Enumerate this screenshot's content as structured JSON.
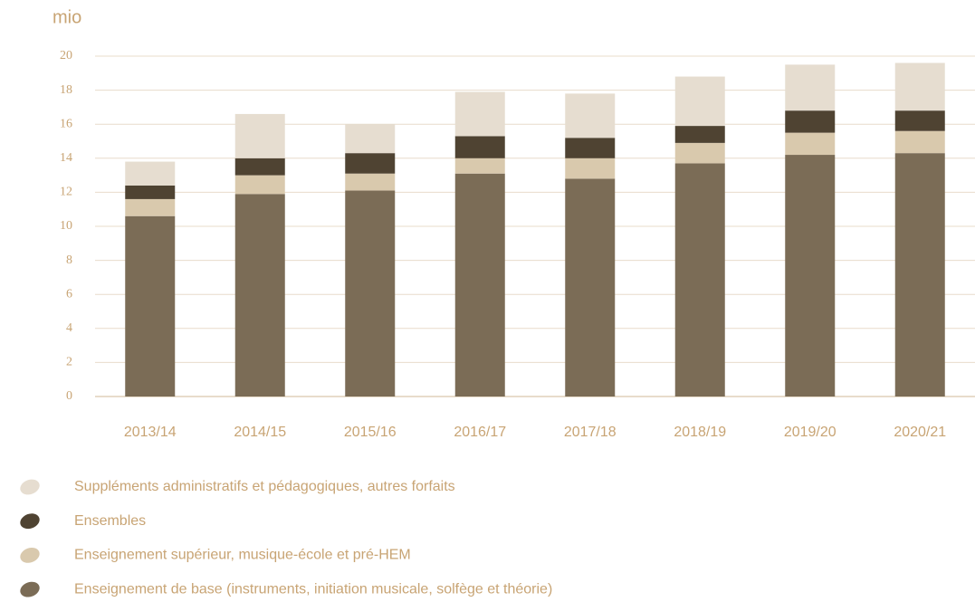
{
  "chart_data": {
    "type": "bar",
    "stacked": true,
    "y_label": "mio",
    "categories": [
      "2013/14",
      "2014/15",
      "2015/16",
      "2016/17",
      "2017/18",
      "2018/19",
      "2019/20",
      "2020/21"
    ],
    "series": [
      {
        "name": "Enseignement de base (instruments, initiation musicale, solfège et théorie)",
        "color": "#7b6c56",
        "values": [
          10.6,
          11.9,
          12.1,
          13.1,
          12.8,
          13.7,
          14.2,
          14.3
        ]
      },
      {
        "name": "Enseignement supérieur, musique-école et pré-HEM",
        "color": "#d9c9ad",
        "values": [
          1.0,
          1.1,
          1.0,
          0.9,
          1.2,
          1.2,
          1.3,
          1.3
        ]
      },
      {
        "name": "Ensembles",
        "color": "#4f4332",
        "values": [
          0.8,
          1.0,
          1.2,
          1.3,
          1.2,
          1.0,
          1.3,
          1.2
        ]
      },
      {
        "name": "Suppléments administratifs et pédagogiques, autres forfaits",
        "color": "#e6ddd0",
        "values": [
          1.4,
          2.6,
          1.7,
          2.6,
          2.6,
          2.9,
          2.7,
          2.8
        ]
      }
    ],
    "ylim": [
      0,
      20
    ],
    "yticks": [
      0,
      2,
      4,
      6,
      8,
      10,
      12,
      14,
      16,
      18,
      20
    ],
    "grid": true
  }
}
